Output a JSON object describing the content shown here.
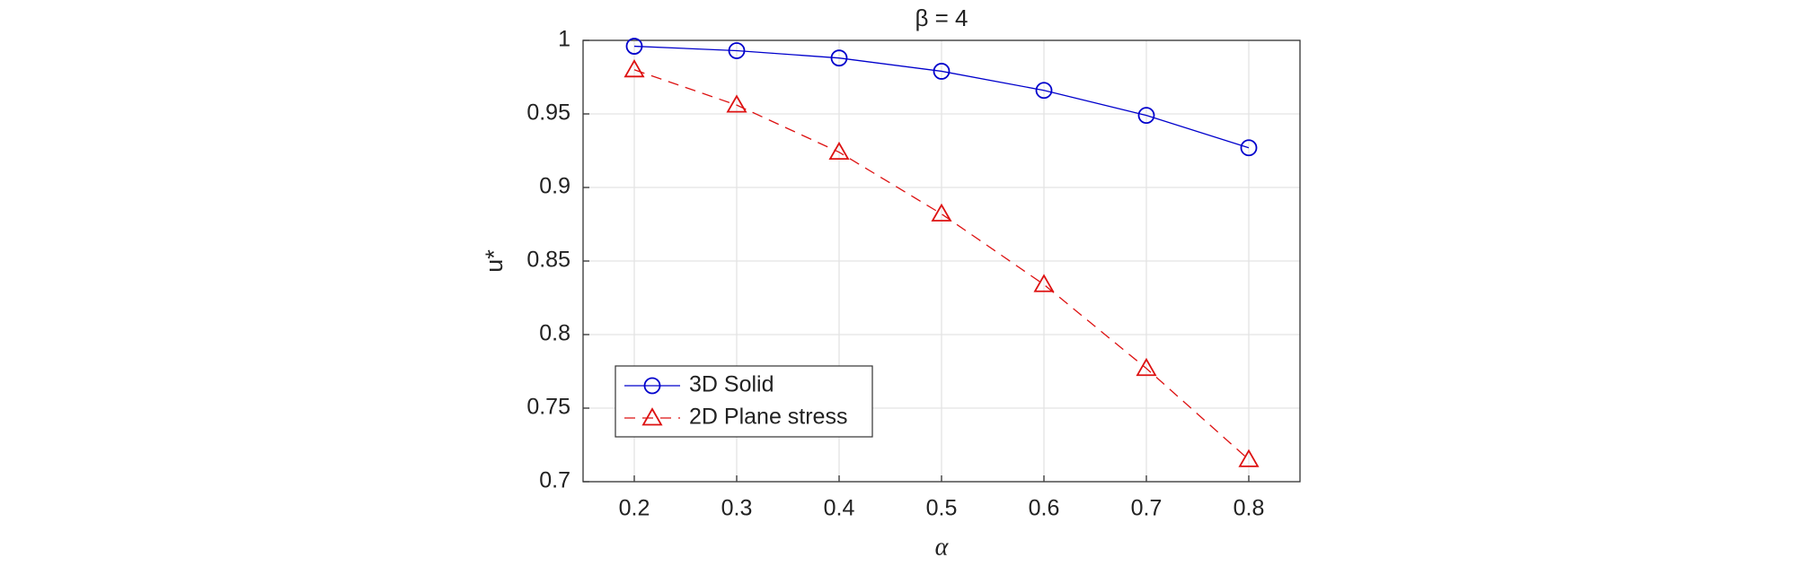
{
  "chart_data": {
    "type": "line",
    "title": "β = 4",
    "x_label": "α",
    "y_label": "u*",
    "x": [
      0.2,
      0.3,
      0.4,
      0.5,
      0.6,
      0.7,
      0.8
    ],
    "series": [
      {
        "name": "3D Solid",
        "color": "#0000cc",
        "marker": "circle",
        "dash": false,
        "values": [
          0.996,
          0.993,
          0.988,
          0.979,
          0.966,
          0.949,
          0.927
        ]
      },
      {
        "name": "2D Plane stress",
        "color": "#dd1111",
        "marker": "triangle",
        "dash": true,
        "values": [
          0.98,
          0.956,
          0.924,
          0.882,
          0.834,
          0.777,
          0.715
        ]
      }
    ],
    "xlim": [
      0.15,
      0.85
    ],
    "xticks": [
      0.2,
      0.3,
      0.4,
      0.5,
      0.6,
      0.7,
      0.8
    ],
    "ylim": [
      0.7,
      1
    ],
    "yticks": [
      0.7,
      0.75,
      0.8,
      0.85,
      0.9,
      0.95,
      1
    ],
    "grid": true,
    "legend": "lower left"
  }
}
